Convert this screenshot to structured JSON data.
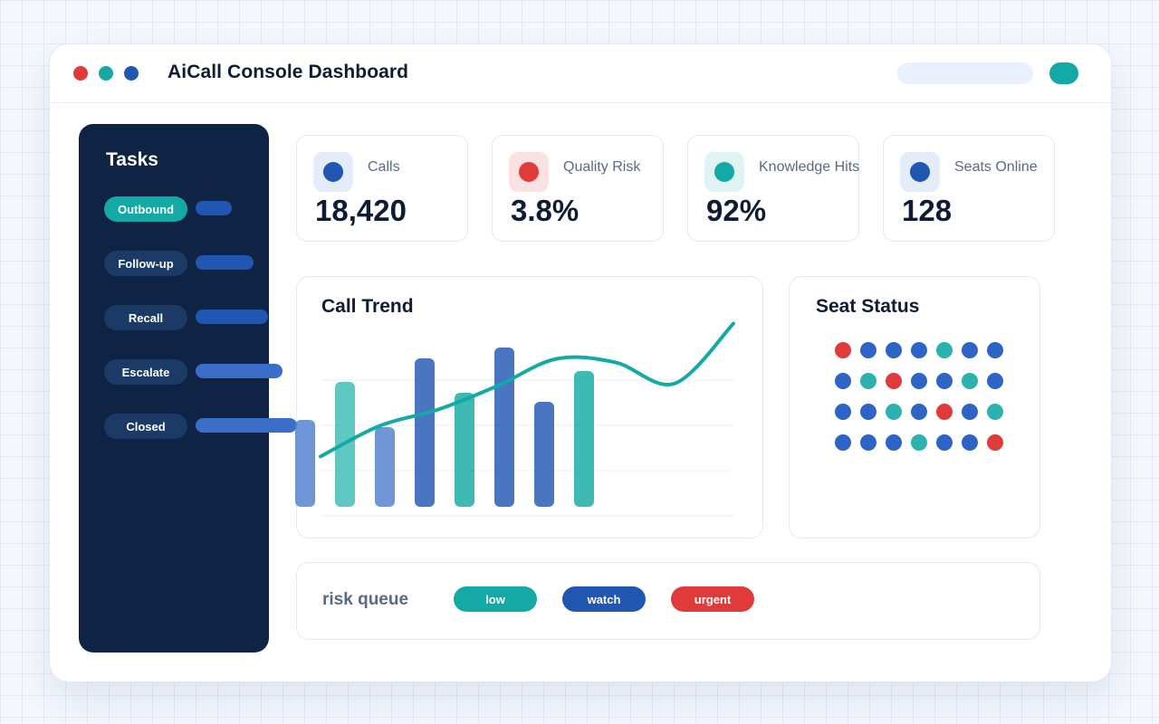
{
  "app": {
    "title": "AiCall Console Dashboard"
  },
  "window_controls": [
    {
      "name": "close",
      "color": "#e03a3a"
    },
    {
      "name": "minimize",
      "color": "#14a9a4"
    },
    {
      "name": "maximize",
      "color": "#2157b3"
    }
  ],
  "sidebar": {
    "title": "Tasks",
    "items": [
      {
        "label": "Outbound",
        "active": true,
        "progress": 0.25
      },
      {
        "label": "Follow-up",
        "active": false,
        "progress": 0.4
      },
      {
        "label": "Recall",
        "active": false,
        "progress": 0.5
      },
      {
        "label": "Escalate",
        "active": false,
        "progress": 0.6
      },
      {
        "label": "Closed",
        "active": false,
        "progress": 0.7
      }
    ]
  },
  "kpis": [
    {
      "label": "Calls",
      "value": "18,420",
      "color": "#2157b3",
      "tint": "#e3ecf8",
      "icon": "calls-icon"
    },
    {
      "label": "Quality Risk",
      "value": "3.8%",
      "color": "#e03a3a",
      "tint": "#fbe2e2",
      "icon": "quality-risk-icon"
    },
    {
      "label": "Knowledge Hits",
      "value": "92%",
      "color": "#14a9a4",
      "tint": "#e0f4f3",
      "icon": "knowledge-hits-icon"
    },
    {
      "label": "Seats Online",
      "value": "128",
      "color": "#2157b3",
      "tint": "#e3ecf8",
      "icon": "seats-online-icon"
    }
  ],
  "trend": {
    "title": "Call Trend"
  },
  "chart_data": {
    "type": "bar",
    "title": "Call Trend",
    "values": [
      0.48,
      0.69,
      0.44,
      0.82,
      0.63,
      0.88,
      0.58,
      0.75
    ],
    "colors": [
      "#4f80d0",
      "#3cbcb6",
      "#4f80d0",
      "#2157b3",
      "#14a9a4",
      "#2157b3",
      "#2157b3",
      "#14a9a4"
    ],
    "line": [
      0.12,
      0.38,
      0.52,
      0.72,
      0.95,
      0.92,
      0.74,
      1.25
    ],
    "line_color": "#14a9a4",
    "grid": true
  },
  "seat_status": {
    "title": "Seat Status",
    "rows": [
      [
        "#e03a3a",
        "#2e64c5",
        "#2e64c5",
        "#2e64c5",
        "#2bb2ae",
        "#2e64c5",
        "#2e64c5"
      ],
      [
        "#2e64c5",
        "#2bb2ae",
        "#e03a3a",
        "#2e64c5",
        "#2e64c5",
        "#2bb2ae",
        "#2e64c5"
      ],
      [
        "#2e64c5",
        "#2e64c5",
        "#2bb2ae",
        "#2e64c5",
        "#e03a3a",
        "#2e64c5",
        "#2bb2ae"
      ],
      [
        "#2e64c5",
        "#2e64c5",
        "#2e64c5",
        "#2bb2ae",
        "#2e64c5",
        "#2e64c5",
        "#e03a3a"
      ]
    ]
  },
  "risk_queue": {
    "label": "risk queue",
    "chips": [
      {
        "label": "low",
        "color": "#14a9a4"
      },
      {
        "label": "watch",
        "color": "#2157b3"
      },
      {
        "label": "urgent",
        "color": "#e03a3a"
      }
    ]
  }
}
